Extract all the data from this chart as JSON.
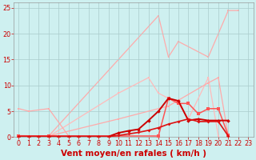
{
  "xlabel": "Vent moyen/en rafales ( km/h )",
  "xlim": [
    -0.5,
    23.5
  ],
  "ylim": [
    0,
    26
  ],
  "yticks": [
    0,
    5,
    10,
    15,
    20,
    25
  ],
  "xticks": [
    0,
    1,
    2,
    3,
    4,
    5,
    6,
    7,
    8,
    9,
    10,
    11,
    12,
    13,
    14,
    15,
    16,
    17,
    18,
    19,
    20,
    21,
    22,
    23
  ],
  "bg_color": "#cef0f0",
  "grid_color": "#aacccc",
  "lines": [
    {
      "x": [
        0,
        3,
        14,
        15,
        16,
        19,
        21,
        22
      ],
      "y": [
        0.3,
        0.2,
        23.5,
        15.5,
        18.5,
        15.5,
        24.5,
        24.5
      ],
      "color": "#ffaaaa",
      "lw": 0.9,
      "ms": 2.0,
      "marker": "s"
    },
    {
      "x": [
        0,
        3,
        10,
        13,
        14,
        15,
        16,
        17,
        19,
        20
      ],
      "y": [
        0.2,
        0.1,
        8.5,
        11.5,
        8.5,
        7.5,
        6.5,
        3.5,
        11.5,
        0.2
      ],
      "color": "#ffbbbb",
      "lw": 0.9,
      "ms": 2.0,
      "marker": "s"
    },
    {
      "x": [
        0,
        1,
        3,
        5
      ],
      "y": [
        5.5,
        5.0,
        5.5,
        0.2
      ],
      "color": "#ffaaaa",
      "lw": 0.9,
      "ms": 2.0,
      "marker": "s"
    },
    {
      "x": [
        0,
        3,
        10,
        15,
        19,
        20,
        21
      ],
      "y": [
        0.2,
        0.2,
        3.5,
        6.0,
        10.5,
        11.5,
        0.2
      ],
      "color": "#ffaaaa",
      "lw": 0.9,
      "ms": 2.0,
      "marker": "s"
    },
    {
      "comment": "medium red - peaks at 15~7.5, 16~6.5, 17~6.5, 19~5.5, 20~5.5",
      "x": [
        0,
        3,
        14,
        15,
        16,
        17,
        18,
        19,
        20,
        21
      ],
      "y": [
        0.2,
        0.2,
        0.2,
        7.5,
        6.5,
        6.5,
        4.5,
        5.5,
        5.5,
        0.3
      ],
      "color": "#ff5555",
      "lw": 1.1,
      "ms": 2.2,
      "marker": "s"
    },
    {
      "x": [
        0,
        1,
        2,
        3,
        4,
        5,
        6,
        7,
        8,
        9,
        10,
        11,
        12,
        13,
        14,
        15,
        16,
        17,
        18,
        19,
        20,
        21
      ],
      "y": [
        0.1,
        0.1,
        0.1,
        0.1,
        0.1,
        0.1,
        0.1,
        0.1,
        0.1,
        0.1,
        0.8,
        1.2,
        1.5,
        3.2,
        5.0,
        7.5,
        7.0,
        3.2,
        3.5,
        3.2,
        3.2,
        3.2
      ],
      "color": "#cc0000",
      "lw": 1.4,
      "ms": 2.3,
      "marker": "D"
    },
    {
      "x": [
        0,
        1,
        2,
        3,
        4,
        5,
        6,
        7,
        8,
        9,
        10,
        11,
        12,
        13,
        14,
        15,
        16,
        17,
        18,
        19,
        20,
        21
      ],
      "y": [
        0.1,
        0.1,
        0.1,
        0.1,
        0.1,
        0.1,
        0.1,
        0.1,
        0.1,
        0.1,
        0.3,
        0.6,
        0.9,
        1.3,
        1.8,
        2.5,
        3.0,
        3.5,
        3.0,
        3.0,
        3.0,
        0.2
      ],
      "color": "#dd1111",
      "lw": 1.2,
      "ms": 2.0,
      "marker": "D"
    }
  ],
  "xlabel_color": "#cc0000",
  "xlabel_fontsize": 7.5,
  "tick_color": "#cc0000",
  "tick_fontsize": 5.8
}
